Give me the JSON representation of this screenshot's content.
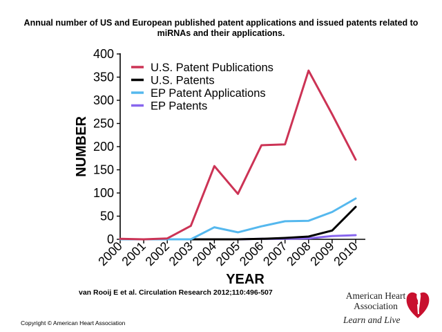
{
  "page": {
    "title_line1": "Annual number of US and European published patent applications and issued patents related to",
    "title_line2": "miRNAs and their applications.",
    "citation": "van Rooij E et al. Circulation Research 2012;110:496-507",
    "copyright": "Copyright © American Heart Association",
    "logo": {
      "name_line1": "American Heart",
      "name_line2": "Association",
      "tagline": "Learn and Live",
      "icon": "heart-torch-icon",
      "color": "#c8102e"
    }
  },
  "chart_data": {
    "type": "line",
    "title": "",
    "xlabel": "YEAR",
    "ylabel": "NUMBER",
    "x": [
      "2000",
      "2001",
      "2002",
      "2003",
      "2004",
      "2005",
      "2006",
      "2007",
      "2008",
      "2009",
      "2010"
    ],
    "ylim": [
      0,
      400
    ],
    "yticks": [
      0,
      50,
      100,
      150,
      200,
      250,
      300,
      350,
      400
    ],
    "grid": false,
    "legend_position": "top-left",
    "series": [
      {
        "name": "U.S. Patent Publications",
        "color": "#cc3355",
        "values": [
          1,
          0,
          2,
          29,
          158,
          98,
          203,
          205,
          364,
          270,
          172
        ]
      },
      {
        "name": "U.S. Patents",
        "color": "#000000",
        "values": [
          0,
          0,
          0,
          0,
          0,
          0,
          1,
          3,
          6,
          19,
          70
        ]
      },
      {
        "name": "EP Patent Applications",
        "color": "#55b8ee",
        "values": [
          0,
          0,
          0,
          0,
          26,
          15,
          28,
          39,
          40,
          59,
          88
        ]
      },
      {
        "name": "EP Patents",
        "color": "#8866ee",
        "values": [
          0,
          0,
          0,
          0,
          0,
          0,
          1,
          1,
          2,
          7,
          9
        ]
      }
    ]
  }
}
